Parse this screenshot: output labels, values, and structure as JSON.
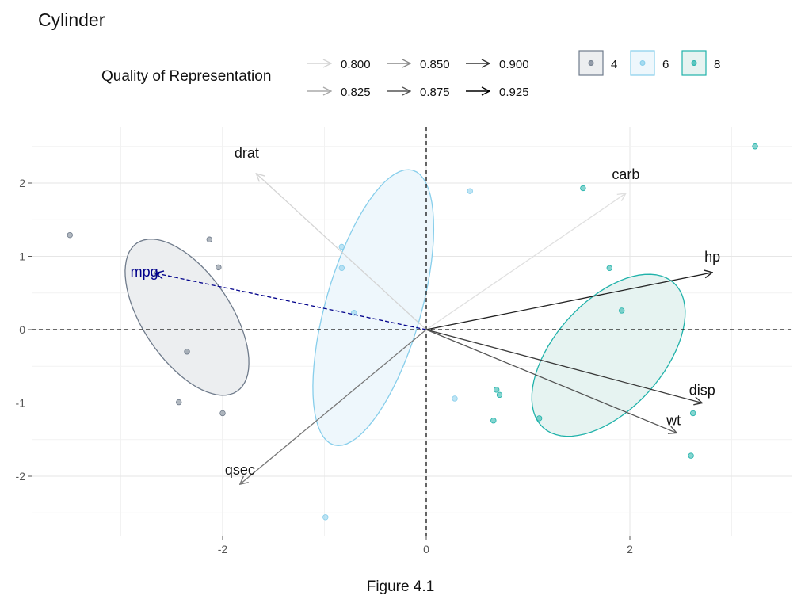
{
  "title": "Cylinder",
  "caption": "Figure 4.1",
  "quality_legend": {
    "title": "Quality of Representation",
    "entries": [
      "0.800",
      "0.825",
      "0.850",
      "0.875",
      "0.900",
      "0.925"
    ]
  },
  "groups_legend": {
    "entries": [
      {
        "label": "4",
        "color": "#6f7b8b",
        "fill": "#eceef0"
      },
      {
        "label": "6",
        "color": "#87ceeb",
        "fill": "#eef7fc"
      },
      {
        "label": "8",
        "color": "#20b2aa",
        "fill": "#e6f3f1"
      }
    ]
  },
  "chart_data": {
    "type": "scatter",
    "subtype": "pca-biplot",
    "xlim": [
      -3.8,
      3.6
    ],
    "ylim": [
      -2.8,
      2.7
    ],
    "xticks": [
      -2,
      0,
      2
    ],
    "yticks": [
      -2,
      -1,
      0,
      1,
      2
    ],
    "grid": true,
    "zero_lines": "dashed",
    "legend_position": "top",
    "points": [
      {
        "group": "4",
        "x": -3.5,
        "y": 1.29
      },
      {
        "group": "4",
        "x": -2.13,
        "y": 1.23
      },
      {
        "group": "4",
        "x": -2.04,
        "y": 0.85
      },
      {
        "group": "4",
        "x": -2.65,
        "y": 0.76
      },
      {
        "group": "4",
        "x": -2.35,
        "y": -0.3
      },
      {
        "group": "4",
        "x": -2.43,
        "y": -0.99
      },
      {
        "group": "4",
        "x": -2.0,
        "y": -1.14
      },
      {
        "group": "6",
        "x": -0.83,
        "y": 1.13
      },
      {
        "group": "6",
        "x": -0.83,
        "y": 0.84
      },
      {
        "group": "6",
        "x": -0.71,
        "y": 0.23
      },
      {
        "group": "6",
        "x": 0.43,
        "y": 1.89
      },
      {
        "group": "6",
        "x": -0.99,
        "y": -2.56
      },
      {
        "group": "6",
        "x": 0.28,
        "y": -0.94
      },
      {
        "group": "8",
        "x": 3.23,
        "y": 2.5
      },
      {
        "group": "8",
        "x": 1.54,
        "y": 1.93
      },
      {
        "group": "8",
        "x": 1.8,
        "y": 0.84
      },
      {
        "group": "8",
        "x": 1.92,
        "y": 0.26
      },
      {
        "group": "8",
        "x": 0.69,
        "y": -0.82
      },
      {
        "group": "8",
        "x": 0.72,
        "y": -0.89
      },
      {
        "group": "8",
        "x": 0.66,
        "y": -1.24
      },
      {
        "group": "8",
        "x": 1.11,
        "y": -1.21
      },
      {
        "group": "8",
        "x": 2.62,
        "y": -1.14
      },
      {
        "group": "8",
        "x": 2.6,
        "y": -1.72
      }
    ],
    "ellipses": [
      {
        "group": "4",
        "cx": -2.35,
        "cy": 0.17,
        "rx": 1.22,
        "ry": 0.6,
        "angle": -56
      },
      {
        "group": "6",
        "cx": -0.52,
        "cy": 0.3,
        "rx": 1.95,
        "ry": 0.65,
        "angle": 74
      },
      {
        "group": "8",
        "cx": 1.79,
        "cy": -0.35,
        "rx": 1.33,
        "ry": 0.74,
        "angle": 48
      }
    ],
    "variables": [
      {
        "name": "drat",
        "x": -1.67,
        "y": 2.13,
        "quality": 0.8,
        "color": "#d4d4d4",
        "dashed": false
      },
      {
        "name": "carb",
        "x": 1.96,
        "y": 1.86,
        "quality": 0.825,
        "color": "#e0e0e0",
        "dashed": false
      },
      {
        "name": "mpg",
        "x": -2.66,
        "y": 0.77,
        "quality": 0.925,
        "color": "#00008b",
        "dashed": true
      },
      {
        "name": "hp",
        "x": 2.81,
        "y": 0.78,
        "quality": 0.9,
        "color": "#222222",
        "dashed": false
      },
      {
        "name": "disp",
        "x": 2.71,
        "y": -1.0,
        "quality": 0.9,
        "color": "#3a3a3a",
        "dashed": false
      },
      {
        "name": "wt",
        "x": 2.46,
        "y": -1.41,
        "quality": 0.875,
        "color": "#555555",
        "dashed": false
      },
      {
        "name": "qsec",
        "x": -1.83,
        "y": -2.11,
        "quality": 0.85,
        "color": "#777777",
        "dashed": false
      }
    ]
  }
}
